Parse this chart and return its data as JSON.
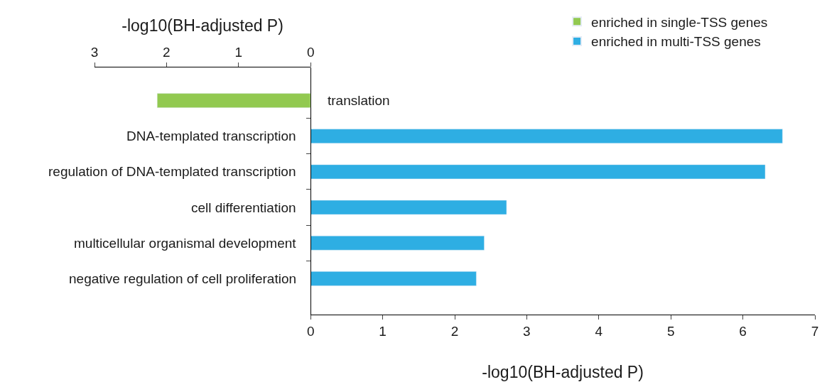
{
  "chart_data": {
    "type": "bar",
    "orientation": "horizontal",
    "categories": [
      "translation",
      "DNA-templated transcription",
      "regulation of DNA-templated transcription",
      "cell differentiation",
      "multicellular organismal development",
      "negative regulation of cell proliferation"
    ],
    "series": [
      {
        "name": "enriched in single-TSS genes",
        "color": "#92c950",
        "axis": "x2",
        "values": [
          2.13,
          null,
          null,
          null,
          null,
          null
        ]
      },
      {
        "name": "enriched in multi-TSS genes",
        "color": "#2eaee3",
        "values": [
          null,
          6.55,
          6.31,
          2.72,
          2.41,
          2.3
        ]
      }
    ],
    "xlim": [
      0,
      7
    ],
    "xticks": [
      0,
      1,
      2,
      3,
      4,
      5,
      6,
      7
    ],
    "xlabel": "-log10(BH-adjusted P)",
    "x2lim": [
      3,
      0
    ],
    "x2ticks": [
      3,
      2,
      1,
      0
    ],
    "x2label": "-log10(BH-adjusted P)",
    "legend": "top right",
    "grid": false
  }
}
